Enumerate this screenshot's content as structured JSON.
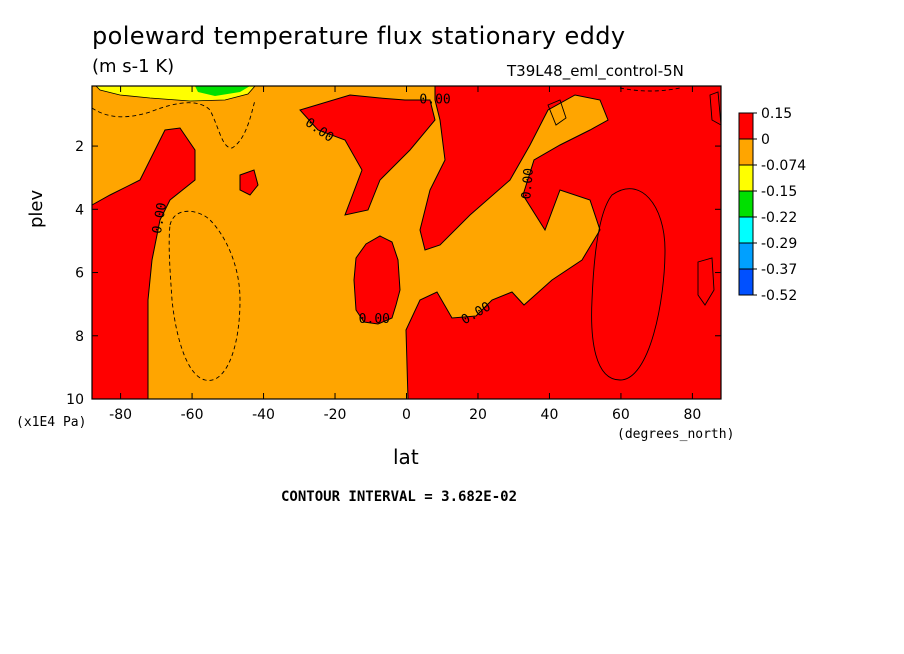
{
  "chart_data": {
    "type": "heatmap",
    "title": "poleward temperature flux stationary eddy",
    "units_label": "(m s-1 K)",
    "dataset_label": "T39L48_eml_control-5N",
    "xlabel": "lat",
    "xunits": "(degrees_north)",
    "ylabel": "plev",
    "yunits": "(x1E4 Pa)",
    "contour_interval_text": "CONTOUR INTERVAL = 3.682E-02",
    "x_range": [
      -88,
      88
    ],
    "y_range": [
      0.1,
      10
    ],
    "y_inverted": true,
    "x_ticks": [
      "-80",
      "-60",
      "-40",
      "-20",
      "0",
      "20",
      "40",
      "60",
      "80"
    ],
    "y_ticks": [
      "2",
      "4",
      "6",
      "8",
      "10"
    ],
    "contour_labels": [
      "0.00",
      "0.00",
      "0.00",
      "0.00",
      "0.00",
      "0.00",
      "0.00"
    ],
    "colorbar": {
      "labels": [
        "0.15",
        "0",
        "-0.074",
        "-0.15",
        "-0.22",
        "-0.29",
        "-0.37",
        "-0.52"
      ],
      "colors": [
        "#ff0000",
        "#ffa500",
        "#ffff00",
        "#00e000",
        "#00ffff",
        "#00a0ff",
        "#0050ff"
      ]
    },
    "regions": [
      {
        "level": "positive",
        "color": "#ff0000",
        "lat": [
          -88,
          -73
        ],
        "plev": [
          1.5,
          10
        ]
      },
      {
        "level": "positive",
        "color": "#ff0000",
        "lat": [
          -14,
          -2
        ],
        "plev": [
          5.0,
          7.6
        ]
      },
      {
        "level": "positive",
        "color": "#ff0000",
        "lat": [
          -30,
          88
        ],
        "plev": [
          0.1,
          10
        ]
      },
      {
        "level": "negative",
        "color": "#ffa500",
        "lat": [
          -88,
          50
        ],
        "plev": [
          0.1,
          10
        ]
      },
      {
        "level": "strongly negative",
        "color": "#ffff00",
        "lat": [
          -82,
          -42
        ],
        "plev": [
          0.1,
          0.5
        ]
      }
    ]
  }
}
